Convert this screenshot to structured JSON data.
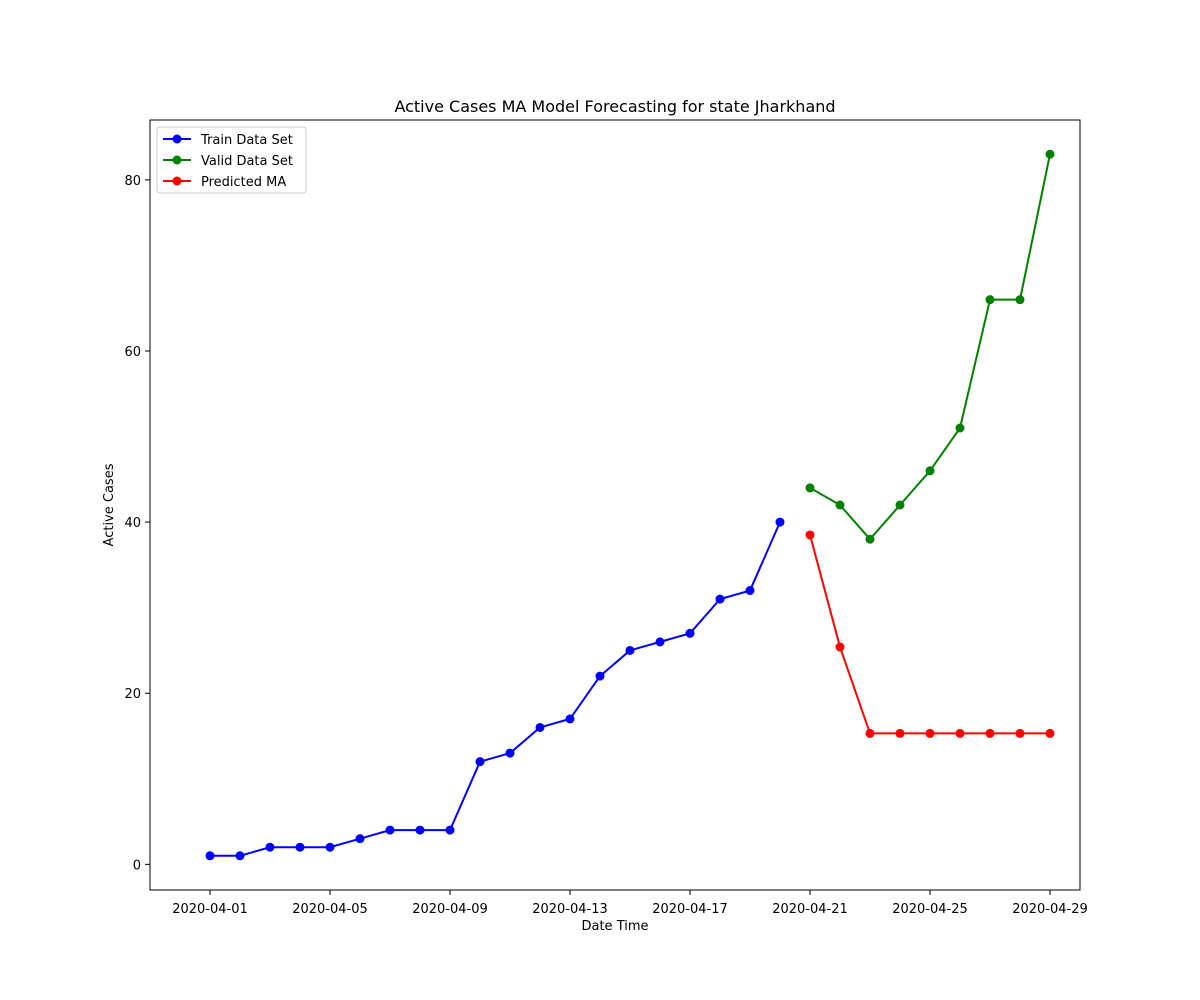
{
  "chart_data": {
    "type": "line",
    "title": "Active Cases MA Model Forecasting for state Jharkhand",
    "xlabel": "Date Time",
    "ylabel": "Active Cases",
    "x_axis_type": "date",
    "xlim": [
      "2020-03-30",
      "2020-04-30"
    ],
    "ylim": [
      -3,
      87
    ],
    "x_ticks": [
      "2020-04-01",
      "2020-04-05",
      "2020-04-09",
      "2020-04-13",
      "2020-04-17",
      "2020-04-21",
      "2020-04-25",
      "2020-04-29"
    ],
    "y_ticks": [
      0,
      20,
      40,
      60,
      80
    ],
    "grid": false,
    "legend_position": "top-left",
    "series": [
      {
        "name": "Train Data Set",
        "color": "#0000ff",
        "marker": "circle",
        "x": [
          "2020-04-01",
          "2020-04-02",
          "2020-04-03",
          "2020-04-04",
          "2020-04-05",
          "2020-04-06",
          "2020-04-07",
          "2020-04-08",
          "2020-04-09",
          "2020-04-10",
          "2020-04-11",
          "2020-04-12",
          "2020-04-13",
          "2020-04-14",
          "2020-04-15",
          "2020-04-16",
          "2020-04-17",
          "2020-04-18",
          "2020-04-19",
          "2020-04-20"
        ],
        "values": [
          1,
          1,
          2,
          2,
          2,
          3,
          4,
          4,
          4,
          12,
          13,
          16,
          17,
          22,
          25,
          26,
          27,
          31,
          32,
          40
        ]
      },
      {
        "name": "Valid Data Set",
        "color": "#008000",
        "marker": "circle",
        "x": [
          "2020-04-21",
          "2020-04-22",
          "2020-04-23",
          "2020-04-24",
          "2020-04-25",
          "2020-04-26",
          "2020-04-27",
          "2020-04-28",
          "2020-04-29"
        ],
        "values": [
          44,
          42,
          38,
          42,
          46,
          51,
          66,
          66,
          83
        ]
      },
      {
        "name": "Predicted MA",
        "color": "#ff0000",
        "marker": "circle",
        "x": [
          "2020-04-21",
          "2020-04-22",
          "2020-04-23",
          "2020-04-24",
          "2020-04-25",
          "2020-04-26",
          "2020-04-27",
          "2020-04-28",
          "2020-04-29"
        ],
        "values": [
          38.5,
          25.4,
          15.3,
          15.3,
          15.3,
          15.3,
          15.3,
          15.3,
          15.3
        ]
      }
    ]
  }
}
